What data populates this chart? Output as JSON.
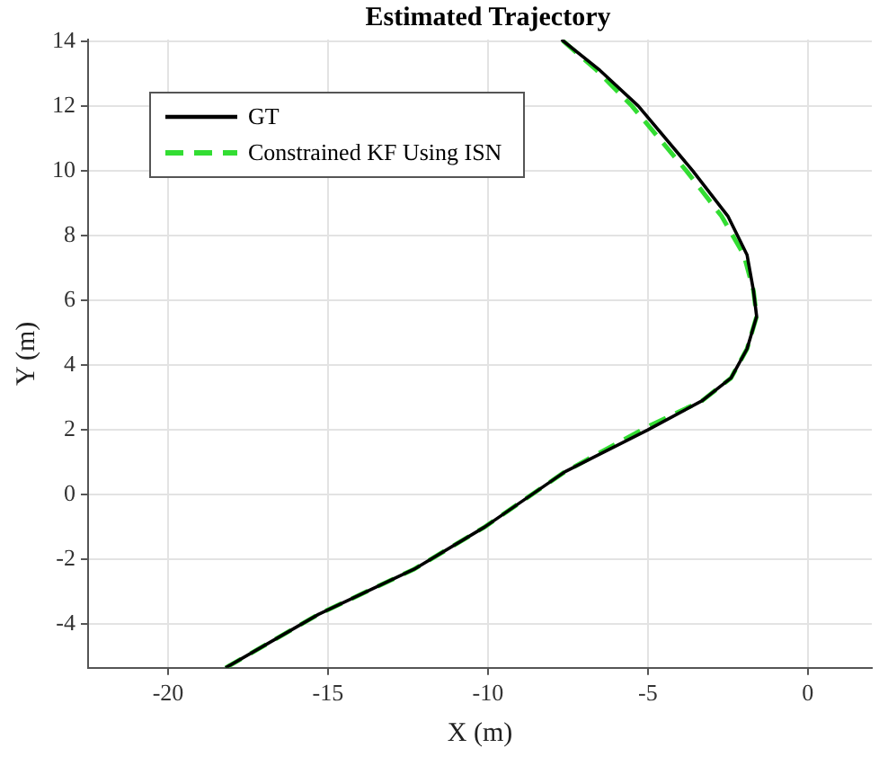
{
  "chart_data": {
    "type": "line",
    "title": "Estimated Trajectory",
    "xlabel": "X (m)",
    "ylabel": "Y (m)",
    "xlim": [
      -22.5,
      2
    ],
    "xticks": [
      -20,
      -15,
      -10,
      -5,
      0
    ],
    "ylim": [
      -5.35,
      14.05
    ],
    "yticks": [
      -4,
      -2,
      0,
      2,
      4,
      6,
      8,
      10,
      12,
      14
    ],
    "grid": true,
    "legend": "top left",
    "marker": "none",
    "series": [
      {
        "name": "GT",
        "color": "#000000",
        "line_style": "solid",
        "x": [
          -18.2,
          -15.3,
          -12.3,
          -10.1,
          -7.6,
          -5.0,
          -3.3,
          -2.4,
          -1.9,
          -1.6,
          -1.7,
          -1.9,
          -2.5,
          -3.6,
          -5.3,
          -6.5,
          -7.7
        ],
        "values": [
          -5.35,
          -3.7,
          -2.3,
          -1.0,
          0.7,
          2.0,
          2.9,
          3.6,
          4.5,
          5.5,
          6.3,
          7.4,
          8.6,
          10.0,
          12.0,
          13.1,
          14.05
        ]
      },
      {
        "name": "Constrained KF Using ISN",
        "color": "#33dd33",
        "line_style": "dashed",
        "x": [
          -18.2,
          -15.3,
          -12.3,
          -10.1,
          -7.6,
          -5.0,
          -3.3,
          -2.4,
          -1.9,
          -1.6,
          -1.7,
          -2.0,
          -2.7,
          -3.8,
          -5.5,
          -6.6,
          -7.7
        ],
        "values": [
          -5.35,
          -3.7,
          -2.3,
          -1.0,
          0.7,
          2.1,
          2.9,
          3.6,
          4.5,
          5.5,
          6.3,
          7.4,
          8.6,
          10.0,
          12.0,
          13.1,
          14.05
        ]
      }
    ]
  }
}
